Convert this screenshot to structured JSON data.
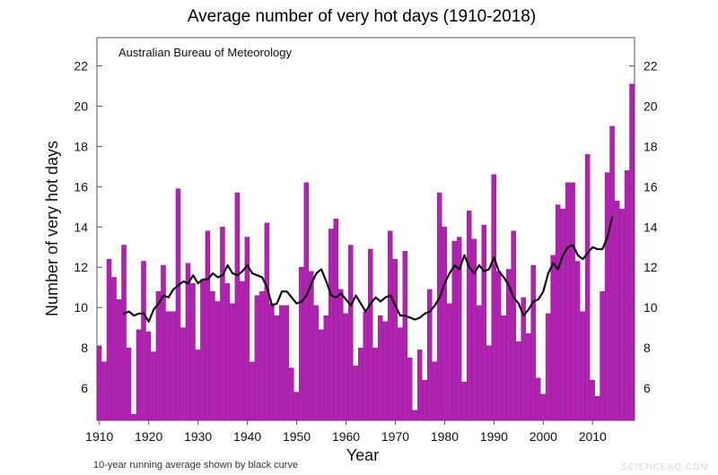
{
  "chart_data": {
    "type": "bar",
    "title": "Average number of very hot days (1910-2018)",
    "annotation": "Australian Bureau of Meteorology",
    "footnote": "10-year running average shown by black curve",
    "xlabel": "Year",
    "ylabel": "Number of very hot days",
    "xlim": [
      1909.5,
      2018.5
    ],
    "ylim": [
      4.4,
      23.4
    ],
    "x_ticks": [
      1910,
      1920,
      1930,
      1940,
      1950,
      1960,
      1970,
      1980,
      1990,
      2000,
      2010
    ],
    "y_ticks": [
      6,
      8,
      10,
      12,
      14,
      16,
      18,
      20,
      22
    ],
    "bar_color": "#b320b3",
    "line_color": "#111111",
    "series": [
      {
        "name": "Average number of very hot days",
        "type": "bar",
        "years": [
          1910,
          1911,
          1912,
          1913,
          1914,
          1915,
          1916,
          1917,
          1918,
          1919,
          1920,
          1921,
          1922,
          1923,
          1924,
          1925,
          1926,
          1927,
          1928,
          1929,
          1930,
          1931,
          1932,
          1933,
          1934,
          1935,
          1936,
          1937,
          1938,
          1939,
          1940,
          1941,
          1942,
          1943,
          1944,
          1945,
          1946,
          1947,
          1948,
          1949,
          1950,
          1951,
          1952,
          1953,
          1954,
          1955,
          1956,
          1957,
          1958,
          1959,
          1960,
          1961,
          1962,
          1963,
          1964,
          1965,
          1966,
          1967,
          1968,
          1969,
          1970,
          1971,
          1972,
          1973,
          1974,
          1975,
          1976,
          1977,
          1978,
          1979,
          1980,
          1981,
          1982,
          1983,
          1984,
          1985,
          1986,
          1987,
          1988,
          1989,
          1990,
          1991,
          1992,
          1993,
          1994,
          1995,
          1996,
          1997,
          1998,
          1999,
          2000,
          2001,
          2002,
          2003,
          2004,
          2005,
          2006,
          2007,
          2008,
          2009,
          2010,
          2011,
          2012,
          2013,
          2014,
          2015,
          2016,
          2017,
          2018
        ],
        "values": [
          8.1,
          7.3,
          12.4,
          11.5,
          10.4,
          13.1,
          8.0,
          4.7,
          8.9,
          12.3,
          8.8,
          7.8,
          10.8,
          12.1,
          9.8,
          9.8,
          15.9,
          9.0,
          12.2,
          11.2,
          7.9,
          11.4,
          13.8,
          10.8,
          10.3,
          14.0,
          11.2,
          10.2,
          15.7,
          11.3,
          13.5,
          7.3,
          10.6,
          10.8,
          14.2,
          10.2,
          9.6,
          10.1,
          10.1,
          7.0,
          5.8,
          12.0,
          16.2,
          11.8,
          10.1,
          8.9,
          9.6,
          13.9,
          14.4,
          10.9,
          9.7,
          13.1,
          7.1,
          8.0,
          9.8,
          12.9,
          8.0,
          9.6,
          9.3,
          13.8,
          12.4,
          9.0,
          12.8,
          7.5,
          4.9,
          7.9,
          6.4,
          10.9,
          7.3,
          15.7,
          14.0,
          10.2,
          13.3,
          13.5,
          6.3,
          14.8,
          13.4,
          10.1,
          14.1,
          8.1,
          16.6,
          11.8,
          9.6,
          11.9,
          13.8,
          8.3,
          10.5,
          8.7,
          12.1,
          6.5,
          5.7,
          9.7,
          12.6,
          15.1,
          14.9,
          16.2,
          16.2,
          12.3,
          9.8,
          17.6,
          6.4,
          5.6,
          10.8,
          16.7,
          19.0,
          15.3,
          14.9,
          16.8,
          21.1
        ]
      },
      {
        "name": "10-year running average",
        "type": "line",
        "years": [
          1915,
          1916,
          1917,
          1918,
          1919,
          1920,
          1921,
          1922,
          1923,
          1924,
          1925,
          1926,
          1927,
          1928,
          1929,
          1930,
          1931,
          1932,
          1933,
          1934,
          1935,
          1936,
          1937,
          1938,
          1939,
          1940,
          1941,
          1942,
          1943,
          1944,
          1945,
          1946,
          1947,
          1948,
          1949,
          1950,
          1951,
          1952,
          1953,
          1954,
          1955,
          1956,
          1957,
          1958,
          1959,
          1960,
          1961,
          1962,
          1963,
          1964,
          1965,
          1966,
          1967,
          1968,
          1969,
          1970,
          1971,
          1972,
          1973,
          1974,
          1975,
          1976,
          1977,
          1978,
          1979,
          1980,
          1981,
          1982,
          1983,
          1984,
          1985,
          1986,
          1987,
          1988,
          1989,
          1990,
          1991,
          1992,
          1993,
          1994,
          1995,
          1996,
          1997,
          1998,
          1999,
          2000,
          2001,
          2002,
          2003,
          2004,
          2005,
          2006,
          2007,
          2008,
          2009,
          2010,
          2011,
          2012,
          2013,
          2014
        ],
        "values": [
          9.7,
          9.8,
          9.6,
          9.7,
          9.7,
          9.3,
          9.9,
          10.2,
          10.6,
          10.5,
          10.9,
          11.1,
          11.3,
          11.2,
          11.6,
          11.2,
          11.4,
          11.4,
          11.7,
          11.5,
          11.6,
          12.1,
          11.7,
          11.6,
          11.8,
          12.1,
          11.7,
          11.6,
          11.5,
          11.0,
          10.1,
          10.2,
          10.8,
          10.8,
          10.5,
          10.2,
          10.3,
          10.6,
          11.2,
          11.7,
          11.9,
          11.3,
          10.6,
          10.5,
          10.7,
          10.4,
          10.1,
          10.6,
          10.2,
          9.8,
          10.2,
          10.5,
          10.3,
          10.5,
          10.6,
          10.1,
          9.6,
          9.6,
          9.5,
          9.4,
          9.5,
          9.7,
          9.8,
          10.1,
          10.5,
          11.2,
          11.7,
          12.1,
          11.9,
          12.6,
          12.0,
          11.7,
          12.1,
          11.8,
          11.9,
          12.5,
          11.8,
          11.5,
          11.1,
          10.5,
          10.2,
          9.6,
          9.9,
          10.3,
          10.4,
          10.8,
          11.7,
          12.2,
          11.9,
          12.6,
          13.0,
          13.1,
          12.6,
          12.4,
          12.7,
          13.0,
          12.9,
          12.9,
          13.5,
          14.5
        ]
      }
    ]
  },
  "watermark": "SCIENCEAQ.COM"
}
